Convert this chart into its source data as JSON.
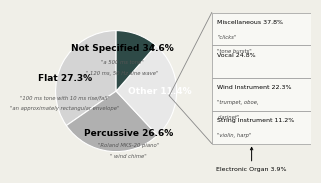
{
  "slices": [
    {
      "label": "Not Specified",
      "pct": 34.6,
      "color": "#d4d4d4",
      "note1": "\"a 500 ms tone\"",
      "note2": "\" 120 ms, 50 Hz sine wave\""
    },
    {
      "label": "Flat",
      "pct": 27.3,
      "color": "#b0b0b0",
      "note1": "\"100 ms tone with 10 ms rise/fall\"",
      "note2": "\"an approximately rectangular envelope\""
    },
    {
      "label": "Percussive",
      "pct": 26.6,
      "color": "#e8e8e8",
      "note1": "\"Roland MKS-20 piano\"",
      "note2": "\" wind chime\""
    },
    {
      "label": "Other",
      "pct": 11.4,
      "color": "#2e4a47"
    }
  ],
  "legend_items": [
    {
      "label": "Miscellaneous 37.8%",
      "sub1": "\"clicks\"",
      "sub2": "\"tone bursts\""
    },
    {
      "label": "Vocal 24.8%",
      "sub1": "",
      "sub2": ""
    },
    {
      "label": "Wind Instrument 22.3%",
      "sub1": "\"trumpet, oboe,",
      "sub2": "clarinet\""
    },
    {
      "label": "String Instrument 11.2%",
      "sub1": "\"violin, harp\"",
      "sub2": ""
    },
    {
      "label": "Electronic Organ 3.9%",
      "sub1": "",
      "sub2": ""
    }
  ],
  "pie_label_font": 6.5,
  "pie_note_font": 3.8,
  "legend_font": 4.5,
  "legend_sub_font": 3.8,
  "background_color": "#f0efe8",
  "edge_color": "#ffffff",
  "legend_edge_color": "#999999",
  "legend_bg": "#f8f8f4"
}
